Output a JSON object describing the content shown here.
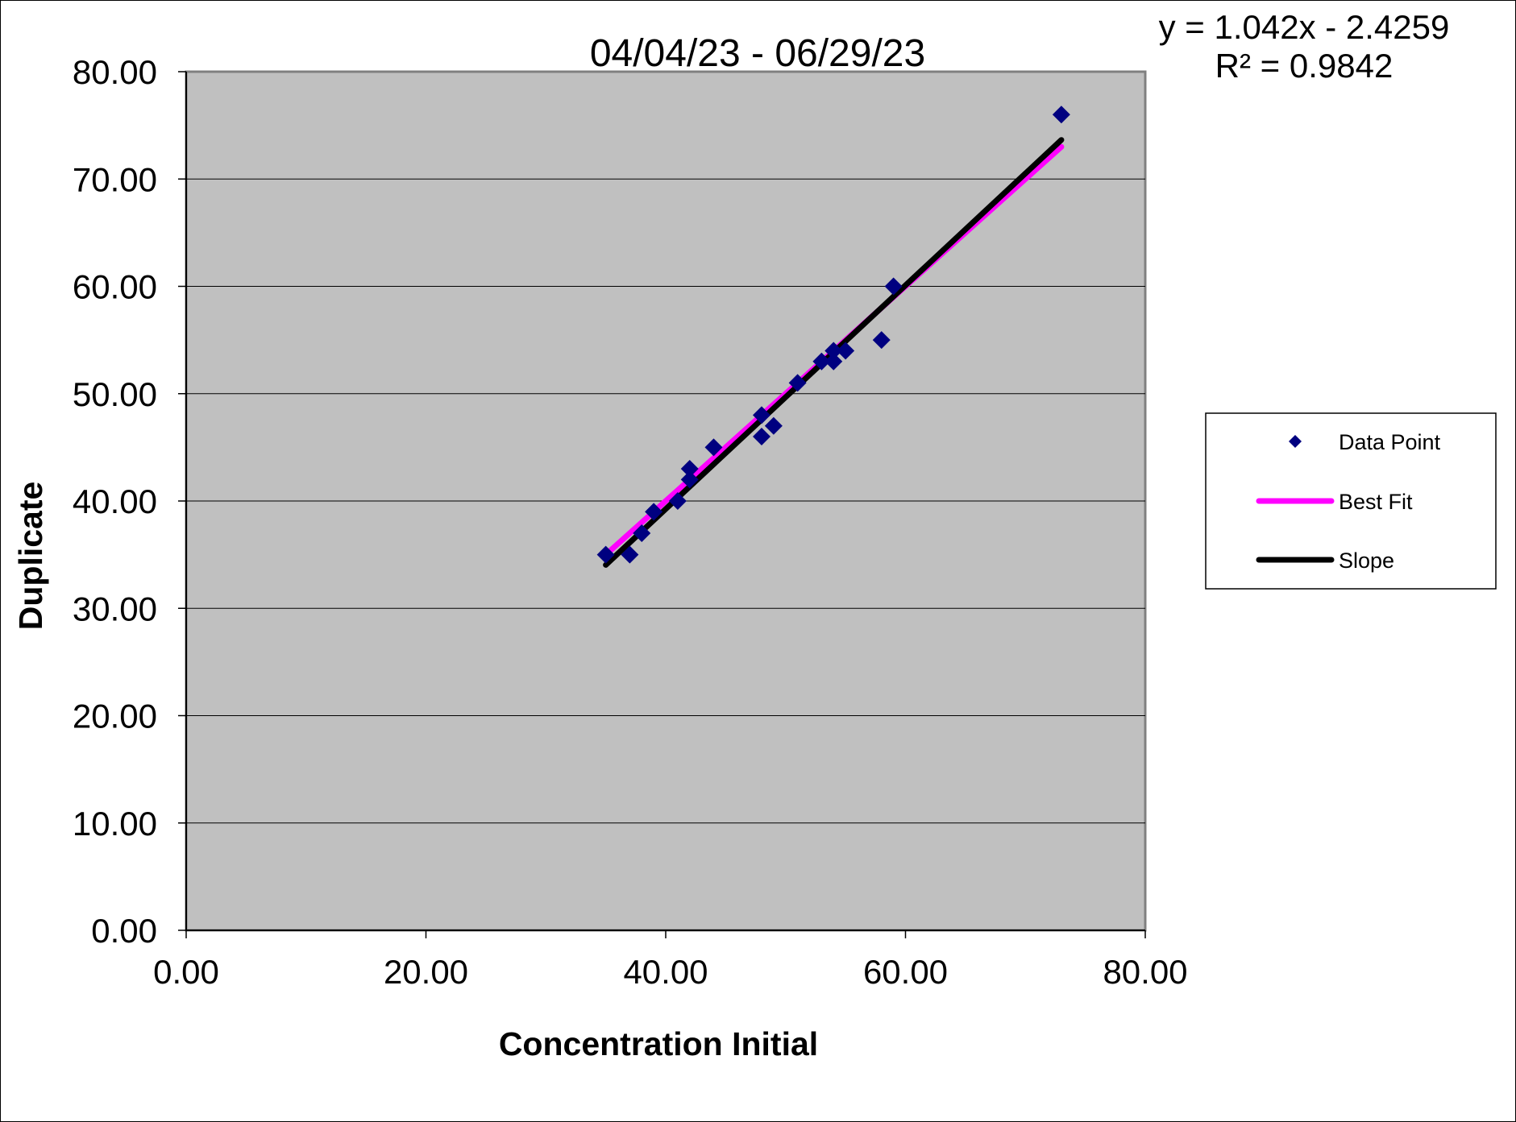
{
  "chart_data": {
    "type": "scatter",
    "title": "04/04/23 - 06/29/23",
    "xlabel": "Concentration Initial",
    "ylabel": "Duplicate",
    "xlim": [
      0,
      80
    ],
    "ylim": [
      0,
      80
    ],
    "x_ticks": [
      "0.00",
      "20.00",
      "40.00",
      "60.00",
      "80.00"
    ],
    "y_ticks": [
      "0.00",
      "10.00",
      "20.00",
      "30.00",
      "40.00",
      "50.00",
      "60.00",
      "70.00",
      "80.00"
    ],
    "grid": "horizontal",
    "plot_background": "#c0c0c0",
    "equation_lines": [
      "y = 1.042x - 2.4259",
      "R² = 0.9842"
    ],
    "legend_position": "right",
    "series": [
      {
        "name": "Data Point",
        "kind": "points",
        "marker": "diamond",
        "color": "#000080",
        "points": [
          [
            35.0,
            35.0
          ],
          [
            37.0,
            35.0
          ],
          [
            38.0,
            37.0
          ],
          [
            39.0,
            39.0
          ],
          [
            41.0,
            40.0
          ],
          [
            42.0,
            42.0
          ],
          [
            42.0,
            43.0
          ],
          [
            44.0,
            45.0
          ],
          [
            48.0,
            46.0
          ],
          [
            48.0,
            48.0
          ],
          [
            49.0,
            47.0
          ],
          [
            51.0,
            51.0
          ],
          [
            53.0,
            53.0
          ],
          [
            54.0,
            53.0
          ],
          [
            54.0,
            54.0
          ],
          [
            55.0,
            54.0
          ],
          [
            58.0,
            55.0
          ],
          [
            59.0,
            60.0
          ],
          [
            73.0,
            76.0
          ]
        ]
      },
      {
        "name": "Best Fit",
        "kind": "line",
        "color": "#ff00ff",
        "points": [
          [
            35.0,
            35.0
          ],
          [
            73.0,
            73.0
          ]
        ]
      },
      {
        "name": "Slope",
        "kind": "line",
        "color": "#000000",
        "points": [
          [
            35.0,
            34.04
          ],
          [
            73.0,
            73.64
          ]
        ]
      }
    ]
  }
}
